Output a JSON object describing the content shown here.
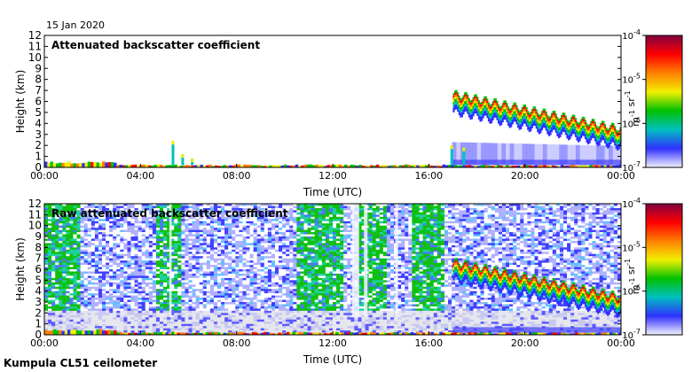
{
  "date": "15 Jan 2020",
  "caption": "Kumpula CL51 ceilometer",
  "chart_data": [
    {
      "type": "heatmap",
      "title": "Attenuated backscatter coefficient",
      "xlabel": "Time (UTC)",
      "ylabel": "Height (km)",
      "x_ticks": [
        "00:00",
        "04:00",
        "08:00",
        "12:00",
        "16:00",
        "20:00",
        "00:00"
      ],
      "y_ticks": [
        "0",
        "1",
        "2",
        "3",
        "4",
        "5",
        "6",
        "7",
        "8",
        "9",
        "10",
        "11",
        "12"
      ],
      "xlim_hours": [
        0,
        24
      ],
      "ylim_km": [
        0,
        12
      ],
      "colorbar": {
        "scale": "log",
        "range": [
          1e-07,
          0.0001
        ],
        "tick_labels": [
          "10-7",
          "10-6",
          "10-5",
          "10-4"
        ],
        "unit": "m-1 sr-1",
        "colors": [
          "#f2f2ff",
          "#3030ff",
          "#00c0c0",
          "#00c000",
          "#f0f000",
          "#ff8000",
          "#ff0000",
          "#800040"
        ]
      },
      "features": [
        {
          "desc": "surface layer",
          "t_start": 0,
          "t_end": 24,
          "h_bottom": 0,
          "h_top": 0.25
        },
        {
          "desc": "cloud band descending",
          "t_start": 17,
          "t_end": 24,
          "h_start": 5.5,
          "h_end": 2.3
        },
        {
          "desc": "isolated echoes",
          "t": [
            5.3,
            5.7,
            6.1,
            16.9,
            17.4
          ],
          "h": [
            2.4,
            1.2,
            0.8,
            2.0,
            1.8
          ]
        }
      ]
    },
    {
      "type": "heatmap",
      "title": "Raw attenuated backscatter coefficient",
      "xlabel": "Time (UTC)",
      "ylabel": "Height (km)",
      "x_ticks": [
        "00:00",
        "04:00",
        "08:00",
        "12:00",
        "16:00",
        "20:00",
        "00:00"
      ],
      "y_ticks": [
        "0",
        "1",
        "2",
        "3",
        "4",
        "5",
        "6",
        "7",
        "8",
        "9",
        "10",
        "11",
        "12"
      ],
      "xlim_hours": [
        0,
        24
      ],
      "ylim_km": [
        0,
        12
      ],
      "colorbar": {
        "scale": "log",
        "range": [
          1e-07,
          0.0001
        ],
        "tick_labels": [
          "10-7",
          "10-6",
          "10-5",
          "10-4"
        ],
        "unit": "m-1 sr-1",
        "colors": [
          "#f2f2ff",
          "#3030ff",
          "#00c0c0",
          "#00c000",
          "#f0f000",
          "#ff8000",
          "#ff0000",
          "#800040"
        ]
      },
      "noisy_green_periods_hours": [
        [
          0,
          1.5
        ],
        [
          4.7,
          5.7
        ],
        [
          10.5,
          12.4
        ],
        [
          13.1,
          14.2
        ],
        [
          15.3,
          16.6
        ]
      ]
    }
  ]
}
